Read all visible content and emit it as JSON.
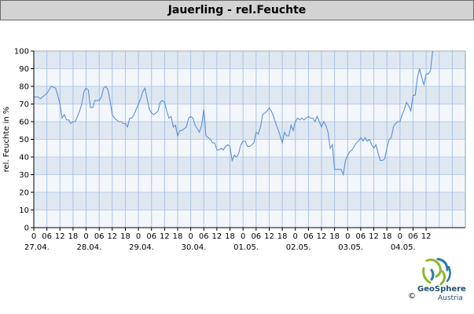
{
  "title": "Jauerling - rel.Feuchte",
  "logo": {
    "name": "GeoSphere",
    "sub": "Austria",
    "copyright": "©"
  },
  "colors": {
    "line": "#5b8fd6",
    "band_dark": "#dfe7f1",
    "band_light": "#f3f6fa",
    "grid": "#aac4e6"
  },
  "chart_data": {
    "type": "line",
    "title": "Jauerling - rel.Feuchte",
    "ylabel": "rel. Feuchte in %",
    "xlabel": "",
    "ylim": [
      0,
      100
    ],
    "yticks": [
      0,
      10,
      20,
      30,
      40,
      50,
      60,
      70,
      80,
      90,
      100
    ],
    "xlim_hours": [
      0,
      198
    ],
    "x_unit": "hours since 27.04. 00:00",
    "hour_tick_labels": [
      "0",
      "06",
      "12",
      "18",
      "0",
      "06",
      "12",
      "18",
      "0",
      "06",
      "12",
      "18",
      "0",
      "06",
      "12",
      "18",
      "0",
      "06",
      "12",
      "18",
      "0",
      "06",
      "12",
      "18",
      "0",
      "06",
      "12",
      "18",
      "0",
      "06",
      "12"
    ],
    "date_labels": [
      "27.04.",
      "28.04.",
      "29.04.",
      "30.04.",
      "01.05.",
      "02.05.",
      "03.05.",
      "04.05."
    ],
    "grid": true,
    "series": [
      {
        "values": [
          [
            0,
            74
          ],
          [
            2,
            74
          ],
          [
            3,
            73
          ],
          [
            4,
            74
          ],
          [
            6,
            76
          ],
          [
            7,
            78
          ],
          [
            8,
            80
          ],
          [
            10,
            79
          ],
          [
            11,
            75
          ],
          [
            12,
            70
          ],
          [
            13,
            62
          ],
          [
            14,
            64
          ],
          [
            15,
            61
          ],
          [
            16,
            61
          ],
          [
            17,
            59
          ],
          [
            18,
            60
          ],
          [
            19,
            60
          ],
          [
            20,
            63
          ],
          [
            21,
            66
          ],
          [
            22,
            70
          ],
          [
            23,
            77
          ],
          [
            24,
            79
          ],
          [
            25,
            78
          ],
          [
            26,
            68
          ],
          [
            27,
            68
          ],
          [
            28,
            72
          ],
          [
            30,
            72
          ],
          [
            31,
            74
          ],
          [
            32,
            79
          ],
          [
            33,
            80
          ],
          [
            34,
            78
          ],
          [
            35,
            72
          ],
          [
            36,
            64
          ],
          [
            37,
            62
          ],
          [
            38,
            61
          ],
          [
            39,
            60
          ],
          [
            40,
            60
          ],
          [
            41,
            59
          ],
          [
            42,
            59
          ],
          [
            43,
            57
          ],
          [
            44,
            62
          ],
          [
            45,
            62
          ],
          [
            46,
            64
          ],
          [
            47,
            67
          ],
          [
            48,
            70
          ],
          [
            49,
            73
          ],
          [
            50,
            77
          ],
          [
            51,
            79
          ],
          [
            52,
            73
          ],
          [
            53,
            67
          ],
          [
            54,
            65
          ],
          [
            55,
            64
          ],
          [
            56,
            65
          ],
          [
            57,
            66
          ],
          [
            58,
            71
          ],
          [
            59,
            72
          ],
          [
            60,
            71
          ],
          [
            61,
            66
          ],
          [
            62,
            62
          ],
          [
            63,
            63
          ],
          [
            64,
            57
          ],
          [
            65,
            58
          ],
          [
            66,
            52
          ],
          [
            67,
            55
          ],
          [
            68,
            55
          ],
          [
            69,
            56
          ],
          [
            70,
            57
          ],
          [
            71,
            62
          ],
          [
            72,
            63
          ],
          [
            73,
            62
          ],
          [
            74,
            58
          ],
          [
            75,
            56
          ],
          [
            76,
            54
          ],
          [
            77,
            58
          ],
          [
            78,
            67
          ],
          [
            79,
            52
          ],
          [
            80,
            51
          ],
          [
            81,
            50
          ],
          [
            82,
            48
          ],
          [
            83,
            48
          ],
          [
            84,
            44
          ],
          [
            85,
            44
          ],
          [
            86,
            45
          ],
          [
            87,
            44
          ],
          [
            88,
            46
          ],
          [
            89,
            47
          ],
          [
            90,
            46
          ],
          [
            91,
            38
          ],
          [
            92,
            41
          ],
          [
            93,
            40
          ],
          [
            94,
            42
          ],
          [
            95,
            47
          ],
          [
            96,
            49
          ],
          [
            97,
            49
          ],
          [
            98,
            46
          ],
          [
            99,
            46
          ],
          [
            100,
            47
          ],
          [
            101,
            48
          ],
          [
            102,
            54
          ],
          [
            103,
            53
          ],
          [
            104,
            57
          ],
          [
            105,
            64
          ],
          [
            106,
            65
          ],
          [
            107,
            66
          ],
          [
            108,
            68
          ],
          [
            109,
            66
          ],
          [
            110,
            63
          ],
          [
            111,
            59
          ],
          [
            112,
            56
          ],
          [
            113,
            52
          ],
          [
            114,
            48
          ],
          [
            115,
            54
          ],
          [
            116,
            52
          ],
          [
            117,
            52
          ],
          [
            118,
            58
          ],
          [
            119,
            55
          ],
          [
            120,
            60
          ],
          [
            121,
            62
          ],
          [
            122,
            61
          ],
          [
            123,
            62
          ],
          [
            124,
            61
          ],
          [
            125,
            62
          ],
          [
            126,
            63
          ],
          [
            127,
            62
          ],
          [
            128,
            62
          ],
          [
            129,
            60
          ],
          [
            130,
            63
          ],
          [
            131,
            60
          ],
          [
            132,
            57
          ],
          [
            133,
            60
          ],
          [
            134,
            58
          ],
          [
            135,
            54
          ],
          [
            136,
            45
          ],
          [
            137,
            47
          ],
          [
            138,
            33
          ],
          [
            139,
            33
          ],
          [
            140,
            33
          ],
          [
            141,
            33
          ],
          [
            142,
            30
          ],
          [
            143,
            38
          ],
          [
            144,
            41
          ],
          [
            145,
            43
          ],
          [
            146,
            44
          ],
          [
            147,
            46
          ],
          [
            148,
            48
          ],
          [
            149,
            49
          ],
          [
            150,
            51
          ],
          [
            151,
            49
          ],
          [
            152,
            51
          ],
          [
            153,
            49
          ],
          [
            154,
            50
          ],
          [
            155,
            47
          ],
          [
            156,
            45
          ],
          [
            157,
            47
          ],
          [
            158,
            42
          ],
          [
            159,
            38
          ],
          [
            160,
            38
          ],
          [
            161,
            39
          ],
          [
            162,
            45
          ],
          [
            163,
            50
          ],
          [
            164,
            51
          ],
          [
            165,
            57
          ],
          [
            166,
            59
          ],
          [
            167,
            60
          ],
          [
            168,
            60
          ],
          [
            169,
            64
          ],
          [
            170,
            67
          ],
          [
            171,
            71
          ],
          [
            172,
            69
          ],
          [
            173,
            66
          ],
          [
            174,
            75
          ],
          [
            175,
            75
          ],
          [
            176,
            85
          ],
          [
            177,
            90
          ],
          [
            178,
            85
          ],
          [
            179,
            81
          ],
          [
            180,
            87
          ],
          [
            181,
            87
          ],
          [
            182,
            89
          ],
          [
            183,
            100
          ]
        ]
      }
    ]
  }
}
